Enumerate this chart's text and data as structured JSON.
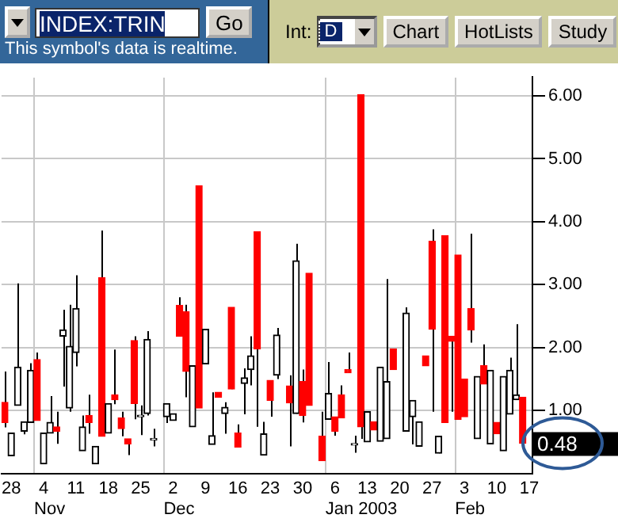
{
  "chart_data": {
    "type": "candlestick",
    "title": "INDEX:TRIN",
    "subtitle": "This symbol's data is realtime.",
    "categories": [
      null,
      "28",
      null,
      null,
      null,
      null,
      "4",
      null,
      null,
      null,
      null,
      "11",
      null,
      null,
      null,
      null,
      "18",
      null,
      null,
      null,
      null,
      "25",
      null,
      null,
      null,
      null,
      "2",
      null,
      null,
      null,
      null,
      "9",
      null,
      null,
      null,
      null,
      "16",
      null,
      null,
      null,
      null,
      "23",
      null,
      null,
      null,
      null,
      "30",
      null,
      null,
      null,
      null,
      "6",
      null,
      null,
      null,
      null,
      "13",
      null,
      null,
      null,
      null,
      "20",
      null,
      null,
      null,
      null,
      "27",
      null,
      null,
      null,
      null,
      "3",
      null,
      null,
      null,
      null,
      "10",
      null,
      null,
      null,
      null,
      "17"
    ],
    "ohlc": [
      [
        1.13,
        1.62,
        0.73,
        0.81
      ],
      [
        0.28,
        0.64,
        0.28,
        0.64
      ],
      [
        1.08,
        3.02,
        1.08,
        1.69
      ],
      [
        0.67,
        0.82,
        0.62,
        0.82
      ],
      [
        0.81,
        1.75,
        0.81,
        1.64
      ],
      [
        1.81,
        1.92,
        0.84,
        0.84
      ],
      [
        0.15,
        0.64,
        0.15,
        0.64
      ],
      [
        0.64,
        1.23,
        0.64,
        0.81
      ],
      [
        0.74,
        0.98,
        0.47,
        0.67
      ],
      [
        2.18,
        2.6,
        1.38,
        2.28
      ],
      [
        1.04,
        2.68,
        0.98,
        2.02
      ],
      [
        1.92,
        3.15,
        1.7,
        2.62
      ],
      [
        0.36,
        0.92,
        0.36,
        0.74
      ],
      [
        0.92,
        1.25,
        0.63,
        0.81
      ],
      [
        0.15,
        0.43,
        0.15,
        0.43
      ],
      [
        3.11,
        3.86,
        0.59,
        0.59
      ],
      [
        0.64,
        1.11,
        0.64,
        1.11
      ],
      [
        1.25,
        1.97,
        1.1,
        1.17
      ],
      [
        0.88,
        0.98,
        0.59,
        0.71
      ],
      [
        0.55,
        0.55,
        0.29,
        0.47
      ],
      [
        2.11,
        2.18,
        0.86,
        1.11
      ],
      [
        0.9,
        1.08,
        0.61,
        0.9
      ],
      [
        0.95,
        2.26,
        0.92,
        2.13
      ],
      [
        0.53,
        0.71,
        0.43,
        0.53
      ],
      null,
      [
        0.9,
        1.11,
        0.8,
        1.11
      ],
      [
        0.84,
        0.95,
        0.84,
        0.95
      ],
      [
        2.67,
        2.8,
        2.18,
        2.18
      ],
      [
        2.57,
        2.68,
        1.21,
        1.62
      ],
      [
        0.74,
        1.71,
        0.74,
        1.71
      ],
      [
        4.57,
        4.57,
        1.04,
        1.04
      ],
      [
        1.74,
        2.29,
        1.74,
        2.29
      ],
      [
        0.46,
        1.29,
        0.46,
        0.6
      ],
      [
        1.29,
        1.29,
        1.21,
        1.21
      ],
      [
        0.95,
        1.13,
        0.63,
        1.05
      ],
      [
        2.64,
        2.64,
        1.34,
        1.34
      ],
      [
        0.64,
        0.78,
        0.42,
        0.42
      ],
      [
        1.43,
        1.67,
        0.94,
        1.52
      ],
      [
        1.65,
        2.18,
        1.4,
        1.87
      ],
      [
        3.84,
        3.84,
        0.74,
        1.98
      ],
      [
        0.29,
        0.82,
        0.29,
        0.63
      ],
      [
        1.48,
        1.48,
        0.9,
        1.16
      ],
      [
        1.56,
        2.31,
        1.5,
        2.2
      ],
      null,
      [
        1.39,
        1.56,
        0.43,
        1.12
      ],
      [
        0.95,
        3.65,
        0.95,
        3.38
      ],
      [
        1.46,
        1.65,
        0.81,
        0.92
      ],
      [
        3.18,
        3.18,
        1.08,
        1.08
      ],
      null,
      [
        0.59,
        0.98,
        0.2,
        0.2
      ],
      [
        0.86,
        1.77,
        0.86,
        1.27
      ],
      [
        0.9,
        0.9,
        0.6,
        0.67
      ],
      [
        1.25,
        1.4,
        0.88,
        0.88
      ],
      [
        1.65,
        1.92,
        1.6,
        1.6
      ],
      [
        0.45,
        0.6,
        0.33,
        0.45
      ],
      [
        6.02,
        6.02,
        0.55,
        0.74
      ],
      [
        0.5,
        0.98,
        0.5,
        0.98
      ],
      [
        0.82,
        0.82,
        0.69,
        0.69
      ],
      [
        0.51,
        1.69,
        0.51,
        1.69
      ],
      [
        0.55,
        3.09,
        0.55,
        1.46
      ],
      [
        1.98,
        1.98,
        1.65,
        1.65
      ],
      null,
      [
        0.67,
        2.64,
        0.67,
        2.55
      ],
      [
        0.9,
        1.16,
        0.46,
        1.16
      ],
      [
        0.43,
        0.82,
        0.43,
        0.82
      ],
      [
        1.87,
        1.87,
        1.71,
        1.71
      ],
      [
        3.69,
        3.88,
        0.98,
        2.29
      ],
      [
        0.32,
        0.59,
        0.32,
        0.59
      ],
      [
        3.78,
        3.78,
        0.81,
        0.81
      ],
      [
        2.18,
        2.18,
        0.98,
        2.1
      ],
      [
        3.47,
        3.47,
        0.86,
        0.86
      ],
      [
        1.5,
        1.5,
        0.9,
        0.9
      ],
      [
        2.62,
        3.81,
        2.08,
        2.28
      ],
      [
        0.55,
        1.54,
        0.55,
        1.54
      ],
      [
        1.71,
        2.05,
        1.42,
        1.42
      ],
      [
        0.47,
        1.64,
        0.47,
        1.64
      ],
      [
        0.81,
        0.81,
        0.63,
        0.63
      ],
      [
        0.36,
        1.54,
        0.36,
        1.54
      ],
      [
        0.94,
        1.84,
        0.94,
        1.64
      ],
      [
        1.17,
        2.37,
        1.17,
        1.25
      ],
      [
        1.21,
        1.21,
        0.46,
        0.48
      ],
      null
    ],
    "colors": [
      "#ff0000",
      "#000000",
      "#000000",
      "#000000",
      "#000000",
      "#ff0000",
      "#000000",
      "#000000",
      "#ff0000",
      "#000000",
      "#000000",
      "#000000",
      "#000000",
      "#ff0000",
      "#000000",
      "#ff0000",
      "#000000",
      "#ff0000",
      "#ff0000",
      "#ff0000",
      "#ff0000",
      "#000000",
      "#000000",
      "#000000",
      null,
      "#000000",
      "#000000",
      "#ff0000",
      "#ff0000",
      "#000000",
      "#ff0000",
      "#000000",
      "#000000",
      "#ff0000",
      "#000000",
      "#ff0000",
      "#ff0000",
      "#000000",
      "#000000",
      "#ff0000",
      "#000000",
      "#ff0000",
      "#000000",
      null,
      "#ff0000",
      "#000000",
      "#ff0000",
      "#ff0000",
      null,
      "#ff0000",
      "#000000",
      "#ff0000",
      "#ff0000",
      "#ff0000",
      "#000000",
      "#ff0000",
      "#000000",
      "#ff0000",
      "#000000",
      "#000000",
      "#ff0000",
      null,
      "#000000",
      "#000000",
      "#000000",
      "#ff0000",
      "#ff0000",
      "#000000",
      "#ff0000",
      "#ff0000",
      "#ff0000",
      "#ff0000",
      "#ff0000",
      "#000000",
      "#ff0000",
      "#000000",
      "#ff0000",
      "#000000",
      "#000000",
      "#000000",
      "#ff0000",
      null
    ],
    "ylim": [
      0,
      6.3
    ],
    "yticks": [
      {
        "value": 1,
        "label": "1.00"
      },
      {
        "value": 2,
        "label": "2.00"
      },
      {
        "value": 3,
        "label": "3.00"
      },
      {
        "value": 4,
        "label": "4.00"
      },
      {
        "value": 5,
        "label": "5.00"
      },
      {
        "value": 6,
        "label": "6.00"
      }
    ],
    "grid": "y",
    "annotations": [
      "Go",
      "Int:",
      "D",
      "Chart",
      "HotLists",
      "Study",
      "Nov",
      "Dec",
      "Jan 2003",
      "Feb",
      "0.48"
    ]
  }
}
